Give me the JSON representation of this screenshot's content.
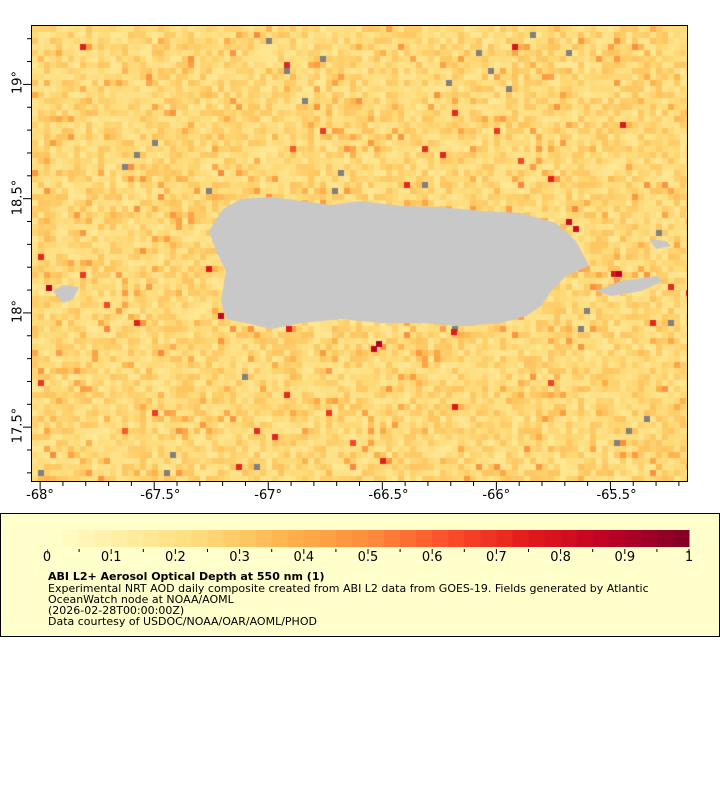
{
  "map": {
    "lon_range": [
      -68.04,
      -65.16
    ],
    "lat_range": [
      17.26,
      19.26
    ],
    "x_ticks": [
      {
        "value": -68,
        "label": "-68°"
      },
      {
        "value": -67.5,
        "label": "-67.5°"
      },
      {
        "value": -67,
        "label": "-67°"
      },
      {
        "value": -66.5,
        "label": "-66.5°"
      },
      {
        "value": -66,
        "label": "-66°"
      },
      {
        "value": -65.5,
        "label": "-65.5°"
      }
    ],
    "y_ticks": [
      {
        "value": 19,
        "label": "19°"
      },
      {
        "value": 18.5,
        "label": "18.5°"
      },
      {
        "value": 18,
        "label": "18°"
      },
      {
        "value": 17.5,
        "label": "17.5°"
      }
    ],
    "land_color": "#c8c8c8",
    "missing_color": "#808080"
  },
  "legend": {
    "colorbar_range": [
      0,
      1
    ],
    "colorbar_labels": [
      "0",
      "0.1",
      "0.2",
      "0.3",
      "0.4",
      "0.5",
      "0.6",
      "0.7",
      "0.8",
      "0.9",
      "1"
    ],
    "colormap": [
      "#ffffcc",
      "#ffeda0",
      "#fed976",
      "#feb24c",
      "#fd8d3c",
      "#fc4e2a",
      "#e31a1c",
      "#bd0026",
      "#800026"
    ],
    "title": "ABI L2+ Aerosol Optical Depth at 550 nm (1)",
    "lines": [
      "Experimental NRT AOD daily composite created from ABI L2 data from GOES-19. Fields generated by Atlantic",
      "OceanWatch node at NOAA/AOML",
      "(2026-02-28T00:00:00Z)",
      "Data courtesy of USDOC/NOAA/OAR/AOML/PHOD"
    ],
    "background": "#ffffcc"
  }
}
